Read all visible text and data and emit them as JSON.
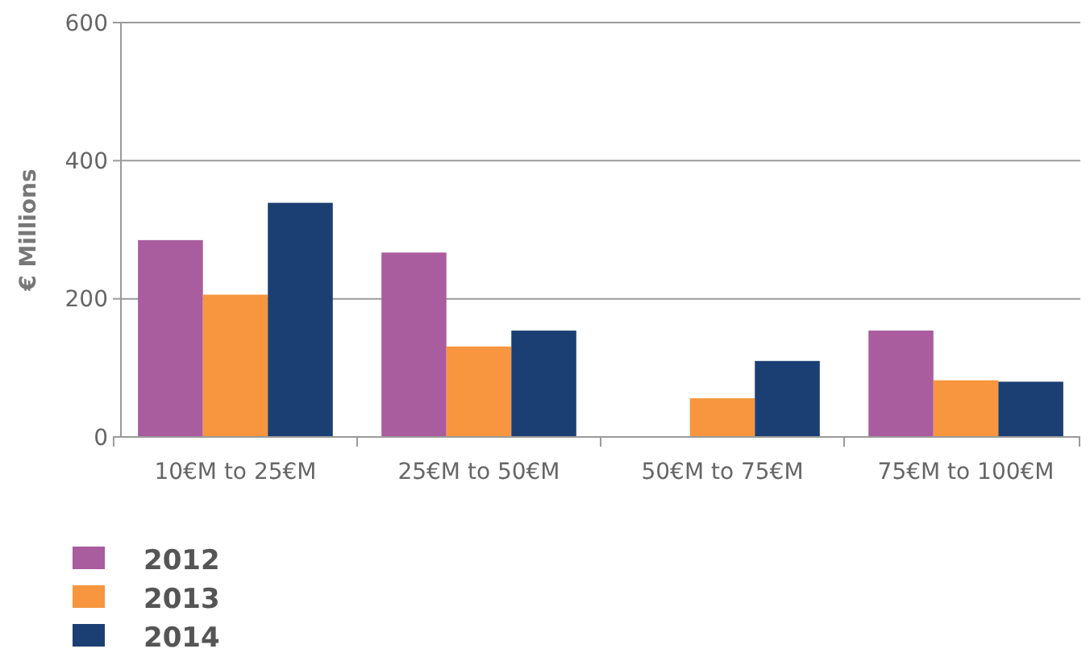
{
  "chart_data": {
    "type": "bar",
    "ylabel": "€ Millions",
    "categories": [
      "10€M to 25€M",
      "25€M to 50€M",
      "50€M to 75€M",
      "75€M to 100€M"
    ],
    "series": [
      {
        "name": "2012",
        "color": "#a95c9e",
        "values": [
          285,
          267,
          null,
          154
        ]
      },
      {
        "name": "2013",
        "color": "#f7963e",
        "values": [
          206,
          131,
          56,
          82
        ]
      },
      {
        "name": "2014",
        "color": "#1c3f73",
        "values": [
          339,
          154,
          110,
          80
        ]
      }
    ],
    "ylim": [
      0,
      600
    ],
    "yticks": [
      0,
      200,
      400,
      600
    ],
    "grid": "y",
    "legend": "bottom left"
  }
}
